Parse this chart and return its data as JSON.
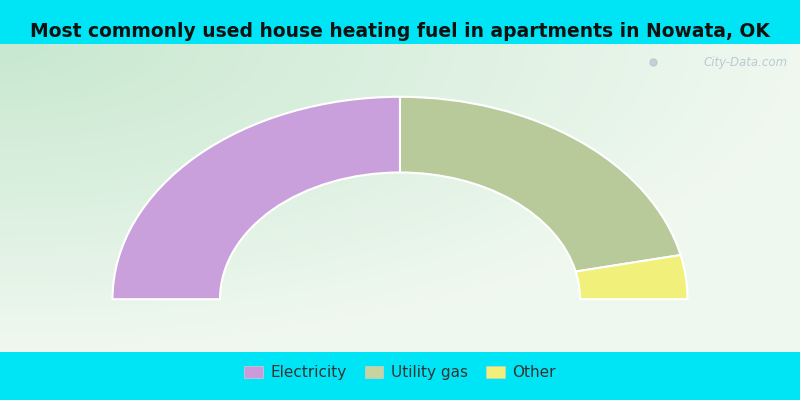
{
  "title": "Most commonly used house heating fuel in apartments in Nowata, OK",
  "categories": [
    "Electricity",
    "Utility gas",
    "Other"
  ],
  "values": [
    50.0,
    43.0,
    7.0
  ],
  "colors": [
    "#c9a0dc",
    "#b8c99a",
    "#f0f07a"
  ],
  "legend_colors": [
    "#cc99dd",
    "#c8d4a0",
    "#f0f077"
  ],
  "bg_cyan": "#00e5f5",
  "bg_chart_color1": "#c8e8d0",
  "bg_chart_color2": "#f0f8f0",
  "title_fontsize": 13.5,
  "legend_fontsize": 11,
  "watermark": "City-Data.com",
  "outer_r": 1.15,
  "inner_r": 0.72
}
